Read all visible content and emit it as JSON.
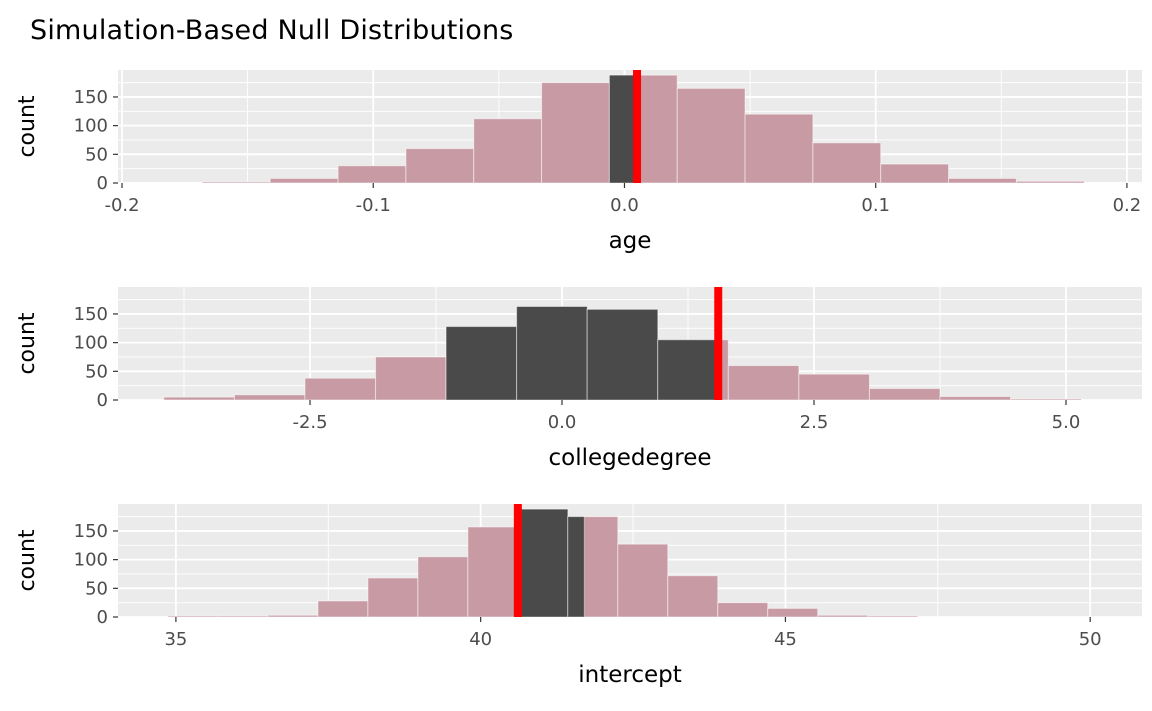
{
  "title": "Simulation-Based Null Distributions",
  "colors": {
    "panel_bg": "#EBEBEB",
    "grid": "#FFFFFF",
    "bar_fill": "#C89AA4",
    "bar_stroke": "#FFFFFF",
    "shaded_fill": "#4A4A4A",
    "obs_line": "#FF0000",
    "tick_text": "#4D4D4D",
    "axis_title_text": "#000000",
    "tick_mark": "#333333"
  },
  "chart_data": [
    {
      "type": "histogram",
      "facet": "age",
      "xlabel": "age",
      "ylabel": "count",
      "x_domain": [
        -0.2016,
        0.206
      ],
      "y_domain": [
        0,
        197
      ],
      "x_major_ticks": [
        {
          "v": -0.2,
          "label": "-0.2"
        },
        {
          "v": -0.1,
          "label": "-0.1"
        },
        {
          "v": 0.0,
          "label": "0.0"
        },
        {
          "v": 0.1,
          "label": "0.1"
        },
        {
          "v": 0.2,
          "label": "0.2"
        }
      ],
      "x_minor_ticks": [
        -0.15,
        -0.05,
        0.05,
        0.15
      ],
      "y_major_ticks": [
        {
          "v": 0,
          "label": "0"
        },
        {
          "v": 50,
          "label": "50"
        },
        {
          "v": 100,
          "label": "100"
        },
        {
          "v": 150,
          "label": "150"
        }
      ],
      "y_minor_ticks": [
        25,
        75,
        125,
        175
      ],
      "obs_stat": 0.005,
      "shade_interval": [
        -0.006,
        0.005
      ],
      "bars": [
        {
          "x0": -0.168,
          "x1": -0.141,
          "count": 2
        },
        {
          "x0": -0.141,
          "x1": -0.114,
          "count": 8
        },
        {
          "x0": -0.114,
          "x1": -0.087,
          "count": 30
        },
        {
          "x0": -0.087,
          "x1": -0.06,
          "count": 60
        },
        {
          "x0": -0.06,
          "x1": -0.033,
          "count": 112
        },
        {
          "x0": -0.033,
          "x1": -0.006,
          "count": 175
        },
        {
          "x0": -0.006,
          "x1": 0.021,
          "count": 188
        },
        {
          "x0": 0.021,
          "x1": 0.048,
          "count": 165
        },
        {
          "x0": 0.048,
          "x1": 0.075,
          "count": 120
        },
        {
          "x0": 0.075,
          "x1": 0.102,
          "count": 70
        },
        {
          "x0": 0.102,
          "x1": 0.129,
          "count": 33
        },
        {
          "x0": 0.129,
          "x1": 0.156,
          "count": 8
        },
        {
          "x0": 0.156,
          "x1": 0.183,
          "count": 3
        }
      ]
    },
    {
      "type": "histogram",
      "facet": "collegedegree",
      "xlabel": "collegedegree",
      "ylabel": "count",
      "x_domain": [
        -4.405,
        5.754
      ],
      "y_domain": [
        0,
        197
      ],
      "x_major_ticks": [
        {
          "v": -2.5,
          "label": "-2.5"
        },
        {
          "v": 0.0,
          "label": "0.0"
        },
        {
          "v": 2.5,
          "label": "2.5"
        },
        {
          "v": 5.0,
          "label": "5.0"
        }
      ],
      "x_minor_ticks": [
        -3.75,
        -1.25,
        1.25,
        3.75
      ],
      "y_major_ticks": [
        {
          "v": 0,
          "label": "0"
        },
        {
          "v": 50,
          "label": "50"
        },
        {
          "v": 100,
          "label": "100"
        },
        {
          "v": 150,
          "label": "150"
        }
      ],
      "y_minor_ticks": [
        25,
        75,
        125,
        175
      ],
      "obs_stat": 1.55,
      "shade_interval": [
        -1.15,
        1.55
      ],
      "bars": [
        {
          "x0": -3.95,
          "x1": -3.25,
          "count": 5
        },
        {
          "x0": -3.25,
          "x1": -2.55,
          "count": 9
        },
        {
          "x0": -2.55,
          "x1": -1.85,
          "count": 38
        },
        {
          "x0": -1.85,
          "x1": -1.15,
          "count": 75
        },
        {
          "x0": -1.15,
          "x1": -0.45,
          "count": 128
        },
        {
          "x0": -0.45,
          "x1": 0.25,
          "count": 163
        },
        {
          "x0": 0.25,
          "x1": 0.95,
          "count": 158
        },
        {
          "x0": 0.95,
          "x1": 1.65,
          "count": 105
        },
        {
          "x0": 1.65,
          "x1": 2.35,
          "count": 60
        },
        {
          "x0": 2.35,
          "x1": 3.05,
          "count": 45
        },
        {
          "x0": 3.05,
          "x1": 3.75,
          "count": 20
        },
        {
          "x0": 3.75,
          "x1": 4.45,
          "count": 6
        },
        {
          "x0": 4.45,
          "x1": 5.15,
          "count": 2
        }
      ]
    },
    {
      "type": "histogram",
      "facet": "intercept",
      "xlabel": "intercept",
      "ylabel": "count",
      "x_domain": [
        34.05,
        50.85
      ],
      "y_domain": [
        0,
        197
      ],
      "x_major_ticks": [
        {
          "v": 35,
          "label": "35"
        },
        {
          "v": 40,
          "label": "40"
        },
        {
          "v": 45,
          "label": "45"
        },
        {
          "v": 50,
          "label": "50"
        }
      ],
      "x_minor_ticks": [
        37.5,
        42.5,
        47.5
      ],
      "y_major_ticks": [
        {
          "v": 0,
          "label": "0"
        },
        {
          "v": 50,
          "label": "50"
        },
        {
          "v": 100,
          "label": "100"
        },
        {
          "v": 150,
          "label": "150"
        }
      ],
      "y_minor_ticks": [
        25,
        75,
        125,
        175
      ],
      "obs_stat": 40.61,
      "shade_interval": [
        40.61,
        41.7
      ],
      "bars": [
        {
          "x0": 34.87,
          "x1": 35.69,
          "count": 2
        },
        {
          "x0": 35.69,
          "x1": 36.51,
          "count": 2
        },
        {
          "x0": 36.51,
          "x1": 37.33,
          "count": 3
        },
        {
          "x0": 37.33,
          "x1": 38.15,
          "count": 28
        },
        {
          "x0": 38.15,
          "x1": 38.97,
          "count": 68
        },
        {
          "x0": 38.97,
          "x1": 39.79,
          "count": 105
        },
        {
          "x0": 39.79,
          "x1": 40.61,
          "count": 157
        },
        {
          "x0": 40.61,
          "x1": 41.43,
          "count": 188
        },
        {
          "x0": 41.43,
          "x1": 42.25,
          "count": 175
        },
        {
          "x0": 42.25,
          "x1": 43.07,
          "count": 127
        },
        {
          "x0": 43.07,
          "x1": 43.89,
          "count": 72
        },
        {
          "x0": 43.89,
          "x1": 44.71,
          "count": 25
        },
        {
          "x0": 44.71,
          "x1": 45.53,
          "count": 15
        },
        {
          "x0": 45.53,
          "x1": 46.35,
          "count": 3
        },
        {
          "x0": 46.35,
          "x1": 47.17,
          "count": 2
        }
      ]
    }
  ]
}
